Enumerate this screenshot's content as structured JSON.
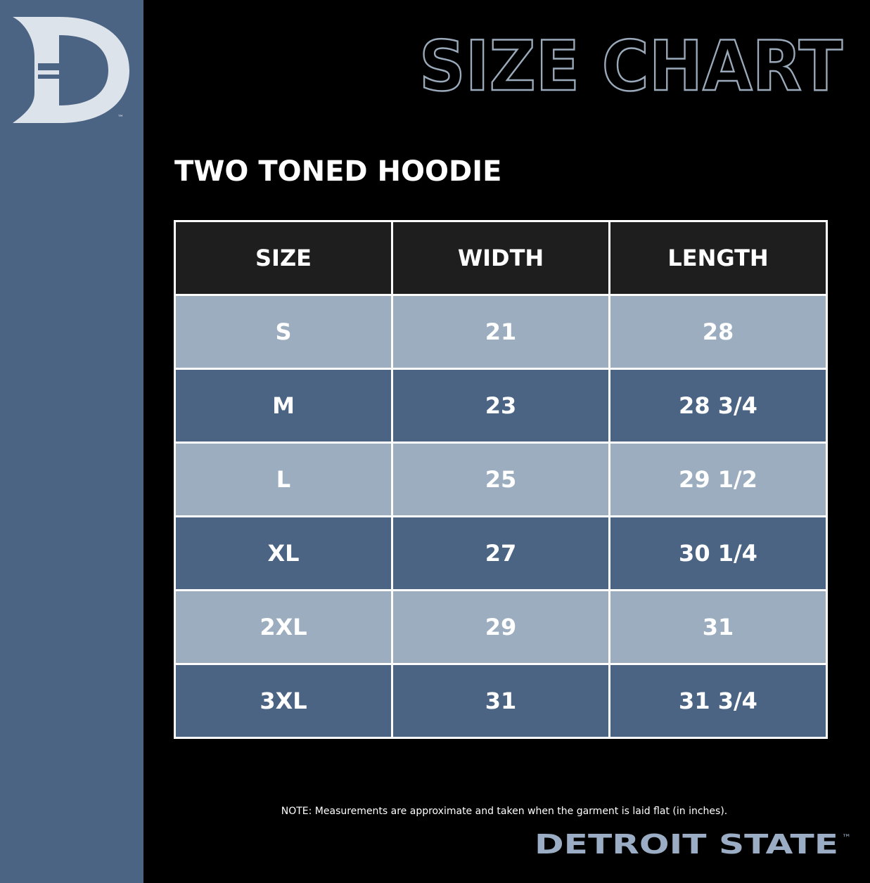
{
  "header": {
    "title": "SIZE CHART",
    "logo_mark": "™"
  },
  "product": "TWO TONED HOODIE",
  "table": {
    "columns": [
      "SIZE",
      "WIDTH",
      "LENGTH"
    ],
    "rows": [
      [
        "S",
        "21",
        "28"
      ],
      [
        "M",
        "23",
        "28 3/4"
      ],
      [
        "L",
        "25",
        "29 1/2"
      ],
      [
        "XL",
        "27",
        "30 1/4"
      ],
      [
        "2XL",
        "29",
        "31"
      ],
      [
        "3XL",
        "31",
        "31 3/4"
      ]
    ]
  },
  "note": "NOTE: Measurements are approximate and taken when the garment is laid flat (in inches).",
  "brand": {
    "name": "DETROIT STATE",
    "mark": "™"
  }
}
